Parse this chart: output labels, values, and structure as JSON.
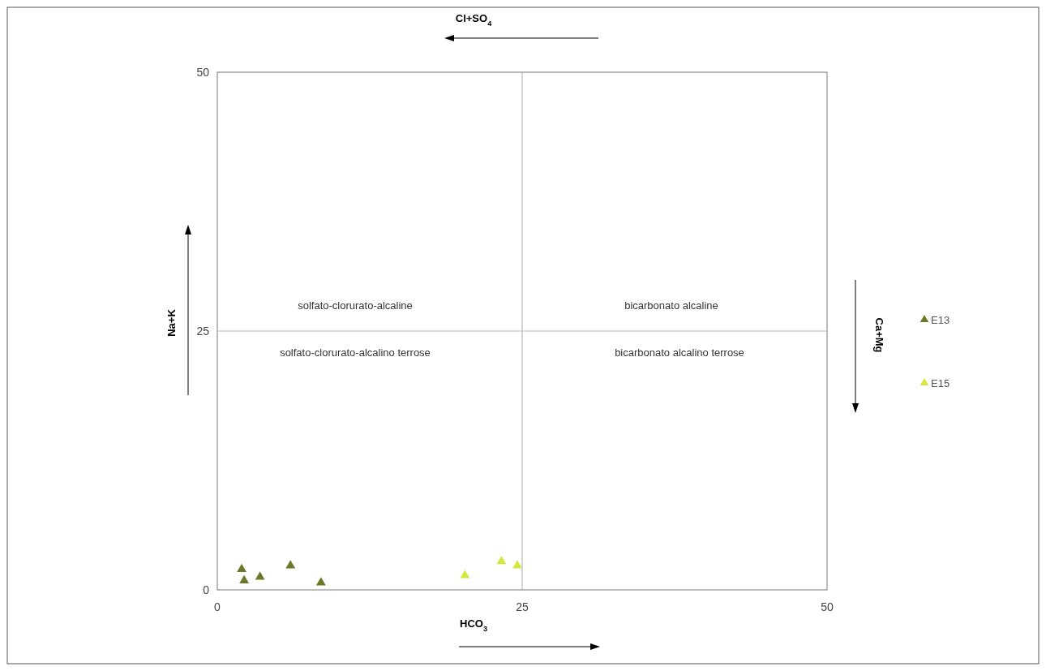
{
  "chart_data": {
    "type": "scatter",
    "xlabel": "HCO$_{3}$",
    "ylabel": "Na+K",
    "x2label": "Cl+SO$_{4}$",
    "y2label": "Ca+Mg",
    "xlim": [
      0,
      50
    ],
    "ylim": [
      0,
      50
    ],
    "xticks": [
      0,
      25,
      50
    ],
    "yticks": [
      0,
      25,
      50
    ],
    "marker": "triangle",
    "legend": "right",
    "grid": false,
    "ref_lines": [
      {
        "axis": "x",
        "value": 25,
        "color": "#a8a8a8"
      },
      {
        "axis": "y",
        "value": 25,
        "color": "#b8b8b8"
      }
    ],
    "annotations": [
      "solfato-clorurato-alcaline",
      "solfato-clorurato-alcalino terrose",
      "bicarbonato alcaline",
      "bicarbonato alcalino terrose"
    ],
    "series": [
      {
        "name": "E13",
        "color": "#6b7a2a",
        "x": [
          2.0,
          2.2,
          3.5,
          6.0,
          8.5
        ],
        "values": [
          2.0,
          0.9,
          1.25,
          2.35,
          0.7
        ]
      },
      {
        "name": "E15",
        "color": "#d4e640",
        "x": [
          20.3,
          23.3,
          24.6
        ],
        "values": [
          1.4,
          2.75,
          2.35
        ]
      }
    ]
  }
}
